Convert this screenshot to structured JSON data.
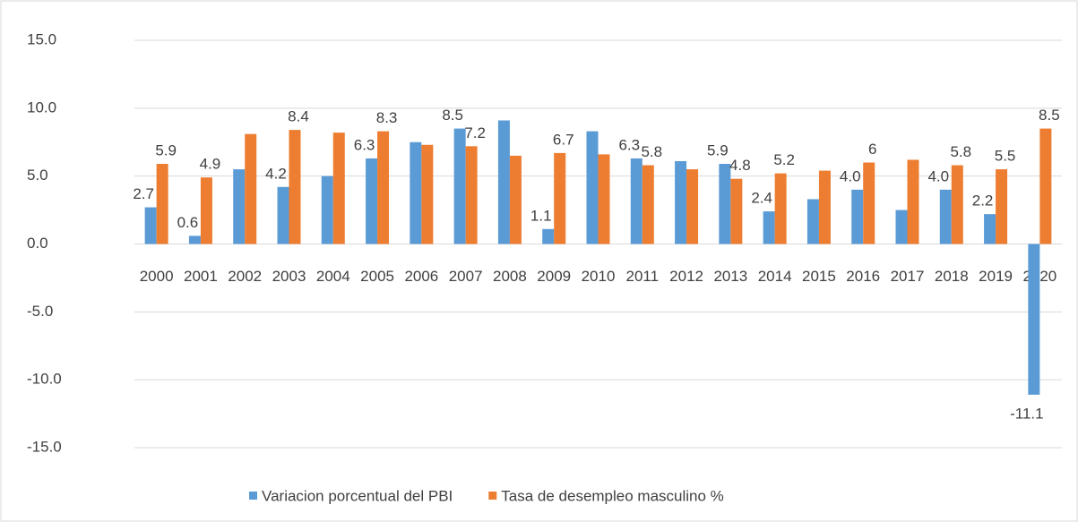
{
  "chart_data": {
    "type": "bar",
    "categories": [
      "2000",
      "2001",
      "2002",
      "2003",
      "2004",
      "2005",
      "2006",
      "2007",
      "2008",
      "2009",
      "2010",
      "2011",
      "2012",
      "2013",
      "2014",
      "2015",
      "2016",
      "2017",
      "2018",
      "2019",
      "2020"
    ],
    "series": [
      {
        "name": "Variacion porcentual del PBI",
        "color": "#5b9bd5",
        "values": [
          2.7,
          0.6,
          5.5,
          4.2,
          5.0,
          6.3,
          7.5,
          8.5,
          9.1,
          1.1,
          8.3,
          6.3,
          6.1,
          5.9,
          2.4,
          3.3,
          4.0,
          2.5,
          4.0,
          2.2,
          -11.1
        ],
        "value_labels": [
          "2.7",
          "0.6",
          null,
          "4.2",
          null,
          "6.3",
          null,
          "8.5",
          null,
          "1.1",
          null,
          "6.3",
          null,
          "5.9",
          "2.4",
          null,
          "4.0",
          null,
          "4.0",
          "2.2",
          "-11.1"
        ]
      },
      {
        "name": "Tasa de desempleo masculino %",
        "color": "#ed7d31",
        "values": [
          5.9,
          4.9,
          8.1,
          8.4,
          8.2,
          8.3,
          7.3,
          7.2,
          6.5,
          6.7,
          6.6,
          5.8,
          5.5,
          4.8,
          5.2,
          5.4,
          6,
          6.2,
          5.8,
          5.5,
          8.5
        ],
        "value_labels": [
          "5.9",
          "4.9",
          null,
          "8.4",
          null,
          "8.3",
          null,
          "7.2",
          null,
          "6.7",
          null,
          "5.8",
          null,
          "4.8",
          "5.2",
          null,
          "6",
          null,
          "5.8",
          "5.5",
          "8.5"
        ]
      }
    ],
    "ylim": [
      -15,
      15
    ],
    "yticks": [
      {
        "value": 15,
        "label": "15.0"
      },
      {
        "value": 10,
        "label": "10.0"
      },
      {
        "value": 5,
        "label": "5.0"
      },
      {
        "value": 0,
        "label": "0.0"
      },
      {
        "value": -5,
        "label": "-5.0"
      },
      {
        "value": -10,
        "label": "-10.0"
      },
      {
        "value": -15,
        "label": "-15.0"
      }
    ],
    "grid": true
  }
}
